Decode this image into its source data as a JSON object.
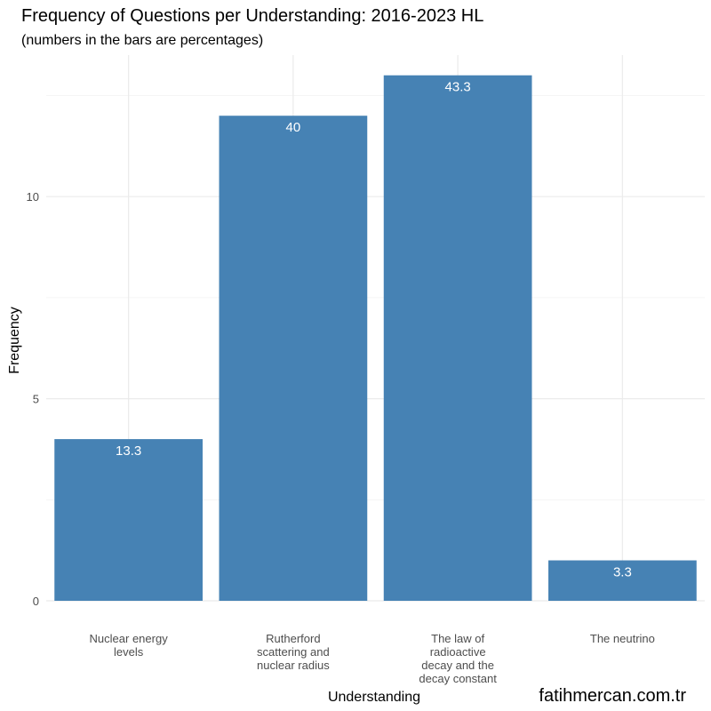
{
  "chart_data": {
    "type": "bar",
    "title": "Frequency of Questions per Understanding: 2016-2023 HL",
    "subtitle": "(numbers in the bars are percentages)",
    "xlabel": "Understanding",
    "ylabel": "Frequency",
    "categories": [
      [
        "Nuclear energy",
        "levels"
      ],
      [
        "Rutherford",
        "scattering and",
        "nuclear radius"
      ],
      [
        "The law of",
        "radioactive",
        "decay and the",
        "decay constant"
      ],
      [
        "The neutrino"
      ]
    ],
    "values": [
      4,
      12,
      13,
      1
    ],
    "data_labels": [
      "13.3",
      "40",
      "43.3",
      "3.3"
    ],
    "ylim": [
      0,
      13.5
    ],
    "yticks": [
      0,
      5,
      10
    ],
    "grid": true,
    "bar_color": "#4682b4"
  },
  "watermark": "fatihmercan.com.tr"
}
